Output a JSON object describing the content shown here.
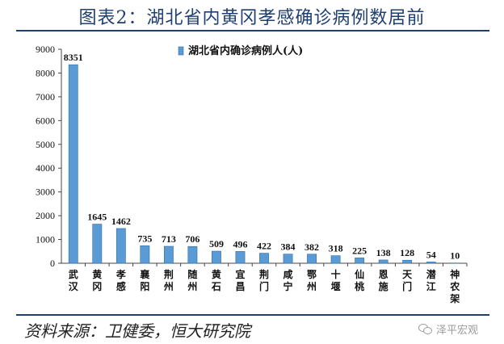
{
  "title": "图表2：湖北省内黄冈孝感确诊病例数居前",
  "source": "资料来源：卫健委，恒大研究院",
  "watermark": "泽平宏观",
  "chart_data": {
    "type": "bar",
    "categories": [
      "武汉",
      "黄冈",
      "孝感",
      "襄阳",
      "荆州",
      "随州",
      "黄石",
      "宜昌",
      "荆门",
      "咸宁",
      "鄂州",
      "十堰",
      "仙桃",
      "恩施",
      "天门",
      "潜江",
      "神农架"
    ],
    "series": [
      {
        "name": "湖北省内确诊病例人(人)",
        "values": [
          8351,
          1645,
          1462,
          735,
          713,
          706,
          509,
          496,
          422,
          384,
          382,
          318,
          225,
          138,
          128,
          54,
          10
        ]
      }
    ],
    "ylim": [
      0,
      9000
    ],
    "yticks": [
      0,
      1000,
      2000,
      3000,
      4000,
      5000,
      6000,
      7000,
      8000,
      9000
    ],
    "legend_position": "top-center",
    "colors": {
      "bar": "#5b9bd5",
      "bar_edge": "#2e6da4",
      "title": "#1f3f72"
    }
  }
}
